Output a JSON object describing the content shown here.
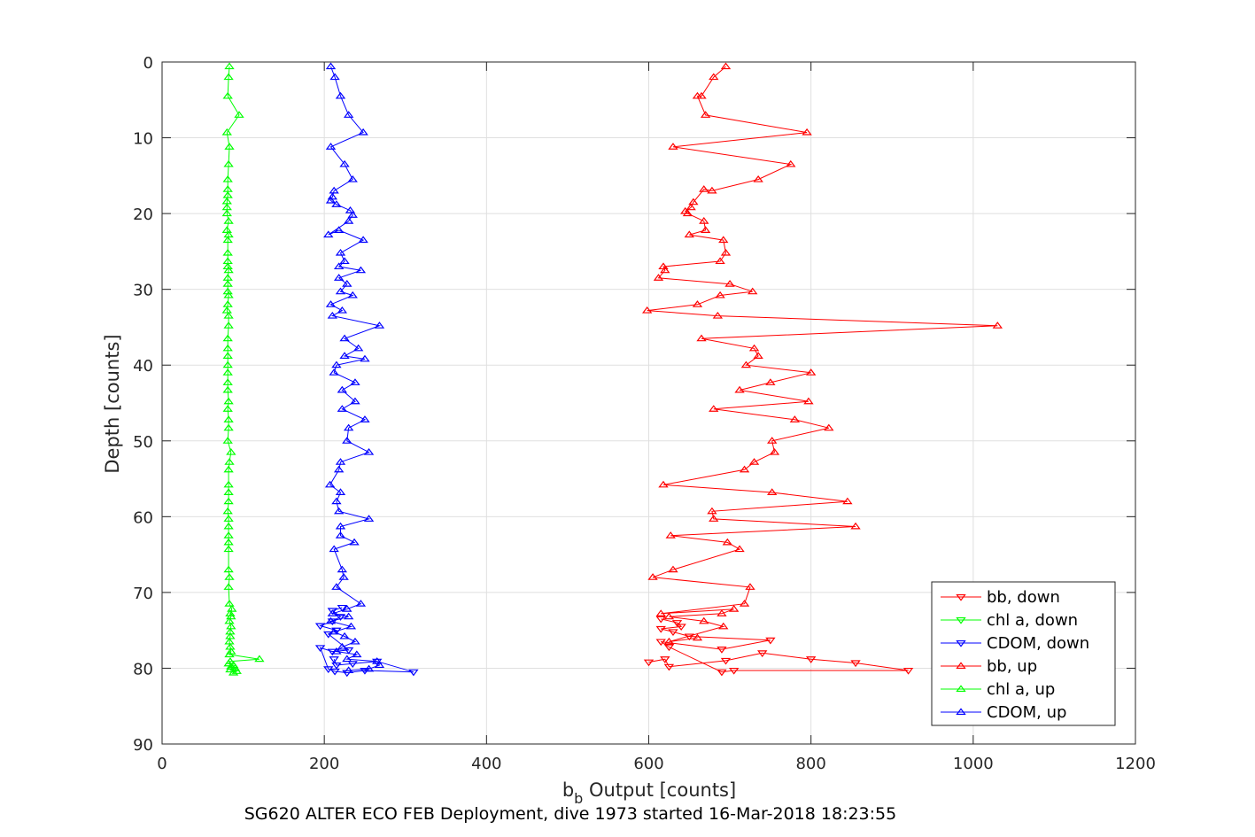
{
  "chart_data": {
    "type": "scatter",
    "caption": "SG620 ALTER ECO FEB Deployment, dive 1973 started 16-Mar-2018 18:23:55",
    "xlabel_main": "b",
    "xlabel_sub": "b",
    "xlabel_rest": " Output [counts]",
    "ylabel": "Depth [counts]",
    "xlim": [
      0,
      1200
    ],
    "ylim": [
      0,
      90
    ],
    "y_reversed": true,
    "xticks": [
      "0",
      "200",
      "400",
      "600",
      "800",
      "1000",
      "1200"
    ],
    "yticks": [
      "0",
      "10",
      "20",
      "30",
      "40",
      "50",
      "60",
      "70",
      "80",
      "90"
    ],
    "grid": true,
    "legend_position": "bottom-right",
    "series": [
      {
        "name": "bb, down",
        "color": "#ff0000",
        "marker": "triangle-down",
        "points": [
          [
            600,
            79.2
          ],
          [
            620,
            78.8
          ],
          [
            625,
            79.8
          ],
          [
            695,
            79
          ],
          [
            740,
            78
          ],
          [
            800,
            78.8
          ],
          [
            855,
            79.3
          ],
          [
            920,
            80.3
          ],
          [
            705,
            80.3
          ],
          [
            690,
            80.5
          ],
          [
            625,
            77.2
          ],
          [
            615,
            76.5
          ],
          [
            690,
            77.5
          ],
          [
            750,
            76.3
          ],
          [
            650,
            75.8
          ],
          [
            630,
            75.2
          ],
          [
            615,
            74.8
          ],
          [
            640,
            74.5
          ],
          [
            635,
            74
          ],
          [
            615,
            73.5
          ]
        ]
      },
      {
        "name": "chl a, down",
        "color": "#00ff00",
        "marker": "triangle-down",
        "points": []
      },
      {
        "name": "CDOM, down",
        "color": "#0000ff",
        "marker": "triangle-down",
        "points": [
          [
            212,
            78.8
          ],
          [
            215,
            79.6
          ],
          [
            235,
            79.4
          ],
          [
            265,
            79.1
          ],
          [
            310,
            80.5
          ],
          [
            250,
            80.3
          ],
          [
            228,
            80.6
          ],
          [
            213,
            80.4
          ],
          [
            205,
            80.1
          ],
          [
            195,
            77.3
          ],
          [
            210,
            77.8
          ],
          [
            230,
            77.6
          ],
          [
            205,
            75.5
          ],
          [
            215,
            75
          ],
          [
            195,
            74.4
          ],
          [
            210,
            73.8
          ],
          [
            220,
            73.2
          ],
          [
            210,
            72.4
          ],
          [
            222,
            72
          ]
        ]
      },
      {
        "name": "bb, up",
        "color": "#ff0000",
        "marker": "triangle-up",
        "points": [
          [
            695,
            0.6
          ],
          [
            680,
            2
          ],
          [
            665,
            4.5
          ],
          [
            660,
            4.5
          ],
          [
            670,
            7
          ],
          [
            795,
            9.3
          ],
          [
            630,
            11.2
          ],
          [
            775,
            13.5
          ],
          [
            735,
            15.5
          ],
          [
            678,
            17
          ],
          [
            668,
            16.8
          ],
          [
            655,
            18.5
          ],
          [
            652,
            19.2
          ],
          [
            645,
            19.7
          ],
          [
            648,
            20
          ],
          [
            668,
            21
          ],
          [
            670,
            22.2
          ],
          [
            650,
            22.8
          ],
          [
            692,
            23.5
          ],
          [
            695,
            25.2
          ],
          [
            688,
            26.3
          ],
          [
            618,
            27
          ],
          [
            620,
            27.5
          ],
          [
            612,
            28.5
          ],
          [
            700,
            29.3
          ],
          [
            728,
            30.3
          ],
          [
            688,
            30.8
          ],
          [
            660,
            32
          ],
          [
            598,
            32.8
          ],
          [
            685,
            33.5
          ],
          [
            1030,
            34.8
          ],
          [
            665,
            36.5
          ],
          [
            730,
            37.8
          ],
          [
            735,
            38.8
          ],
          [
            720,
            40
          ],
          [
            800,
            41
          ],
          [
            750,
            42.3
          ],
          [
            712,
            43.3
          ],
          [
            797,
            44.8
          ],
          [
            680,
            45.8
          ],
          [
            780,
            47.2
          ],
          [
            822,
            48.3
          ],
          [
            752,
            50
          ],
          [
            755,
            51.5
          ],
          [
            730,
            52.8
          ],
          [
            718,
            53.8
          ],
          [
            618,
            55.8
          ],
          [
            752,
            56.8
          ],
          [
            845,
            58
          ],
          [
            678,
            59.3
          ],
          [
            680,
            60.3
          ],
          [
            855,
            61.3
          ],
          [
            627,
            62.5
          ],
          [
            697,
            63.4
          ],
          [
            712,
            64.3
          ],
          [
            630,
            67
          ],
          [
            605,
            68
          ],
          [
            725,
            69.3
          ],
          [
            718,
            71.5
          ],
          [
            615,
            72.8
          ],
          [
            705,
            72.2
          ],
          [
            690,
            72.8
          ],
          [
            625,
            73.2
          ],
          [
            668,
            73.8
          ],
          [
            692,
            74.5
          ],
          [
            625,
            76.5
          ],
          [
            660,
            76
          ]
        ]
      },
      {
        "name": "chl a, up",
        "color": "#00ff00",
        "marker": "triangle-up",
        "points": [
          [
            83,
            0.6
          ],
          [
            82,
            2
          ],
          [
            81,
            4.5
          ],
          [
            95,
            7
          ],
          [
            80,
            9.3
          ],
          [
            83,
            11.2
          ],
          [
            82,
            13.5
          ],
          [
            81,
            15.5
          ],
          [
            81,
            16.8
          ],
          [
            81,
            17.6
          ],
          [
            80,
            18.4
          ],
          [
            80,
            19.2
          ],
          [
            80,
            20
          ],
          [
            82,
            21
          ],
          [
            80,
            22.2
          ],
          [
            82,
            22.8
          ],
          [
            81,
            23.5
          ],
          [
            81,
            25.2
          ],
          [
            81,
            26.3
          ],
          [
            81,
            27
          ],
          [
            82,
            27.5
          ],
          [
            81,
            28.5
          ],
          [
            81,
            29.3
          ],
          [
            81,
            30.3
          ],
          [
            82,
            30.8
          ],
          [
            81,
            32
          ],
          [
            80,
            32.8
          ],
          [
            82,
            33.5
          ],
          [
            82,
            34.8
          ],
          [
            81,
            36.5
          ],
          [
            81,
            37.8
          ],
          [
            81,
            38.8
          ],
          [
            81,
            40
          ],
          [
            81,
            41
          ],
          [
            81,
            42.3
          ],
          [
            81,
            43.3
          ],
          [
            82,
            44.8
          ],
          [
            81,
            45.8
          ],
          [
            82,
            47.2
          ],
          [
            82,
            48.3
          ],
          [
            81,
            50
          ],
          [
            85,
            51.5
          ],
          [
            83,
            52.8
          ],
          [
            82,
            53.8
          ],
          [
            82,
            55.8
          ],
          [
            82,
            56.8
          ],
          [
            82,
            58
          ],
          [
            81,
            59.3
          ],
          [
            82,
            60.3
          ],
          [
            82,
            61.3
          ],
          [
            82,
            62.5
          ],
          [
            82,
            63.4
          ],
          [
            82,
            64.3
          ],
          [
            82,
            67
          ],
          [
            83,
            68
          ],
          [
            82,
            69.3
          ],
          [
            83,
            71.5
          ],
          [
            86,
            72.2
          ],
          [
            84,
            72.8
          ],
          [
            85,
            73.2
          ],
          [
            83,
            73.8
          ],
          [
            85,
            74.5
          ],
          [
            84,
            75.2
          ],
          [
            84,
            75.8
          ],
          [
            83,
            76.5
          ],
          [
            84,
            77.2
          ],
          [
            85,
            77.8
          ],
          [
            83,
            78.2
          ],
          [
            120,
            78.8
          ],
          [
            84,
            79.1
          ],
          [
            82,
            79.4
          ],
          [
            88,
            79.6
          ],
          [
            85,
            79.8
          ],
          [
            90,
            80
          ],
          [
            84,
            80.2
          ],
          [
            92,
            80.4
          ],
          [
            88,
            80.6
          ]
        ]
      },
      {
        "name": "CDOM, up",
        "color": "#0000ff",
        "marker": "triangle-up",
        "points": [
          [
            208,
            0.6
          ],
          [
            213,
            2
          ],
          [
            220,
            4.5
          ],
          [
            230,
            7
          ],
          [
            248,
            9.3
          ],
          [
            208,
            11.2
          ],
          [
            225,
            13.5
          ],
          [
            235,
            15.5
          ],
          [
            212,
            17
          ],
          [
            210,
            17.8
          ],
          [
            208,
            18.3
          ],
          [
            215,
            18.8
          ],
          [
            232,
            19.6
          ],
          [
            235,
            20.2
          ],
          [
            230,
            21
          ],
          [
            205,
            22.8
          ],
          [
            218,
            22.2
          ],
          [
            248,
            23.5
          ],
          [
            220,
            25.2
          ],
          [
            225,
            26.3
          ],
          [
            218,
            27
          ],
          [
            245,
            27.5
          ],
          [
            218,
            28.5
          ],
          [
            228,
            29.3
          ],
          [
            220,
            30.3
          ],
          [
            235,
            30.8
          ],
          [
            208,
            32
          ],
          [
            222,
            32.8
          ],
          [
            210,
            33.5
          ],
          [
            268,
            34.8
          ],
          [
            225,
            36.5
          ],
          [
            242,
            37.8
          ],
          [
            225,
            38.8
          ],
          [
            250,
            39.2
          ],
          [
            215,
            40
          ],
          [
            212,
            41
          ],
          [
            238,
            42.3
          ],
          [
            222,
            43.3
          ],
          [
            238,
            44.8
          ],
          [
            222,
            45.8
          ],
          [
            250,
            47.2
          ],
          [
            230,
            48.3
          ],
          [
            228,
            50
          ],
          [
            255,
            51.5
          ],
          [
            220,
            52.8
          ],
          [
            218,
            53.8
          ],
          [
            207,
            55.8
          ],
          [
            220,
            56.8
          ],
          [
            215,
            58
          ],
          [
            218,
            59.3
          ],
          [
            255,
            60.3
          ],
          [
            220,
            61.3
          ],
          [
            220,
            62.5
          ],
          [
            237,
            63.4
          ],
          [
            212,
            64.3
          ],
          [
            222,
            67
          ],
          [
            224,
            68
          ],
          [
            215,
            69.3
          ],
          [
            245,
            71.5
          ],
          [
            228,
            72.2
          ],
          [
            210,
            72.8
          ],
          [
            230,
            73.2
          ],
          [
            208,
            73.8
          ],
          [
            233,
            74.5
          ],
          [
            212,
            75.2
          ],
          [
            225,
            75.8
          ],
          [
            238,
            76.5
          ],
          [
            222,
            77.2
          ],
          [
            215,
            77.8
          ],
          [
            240,
            78.2
          ],
          [
            228,
            78.8
          ],
          [
            265,
            79.1
          ],
          [
            268,
            79.6
          ],
          [
            255,
            80.1
          ],
          [
            230,
            80.3
          ]
        ]
      }
    ]
  }
}
